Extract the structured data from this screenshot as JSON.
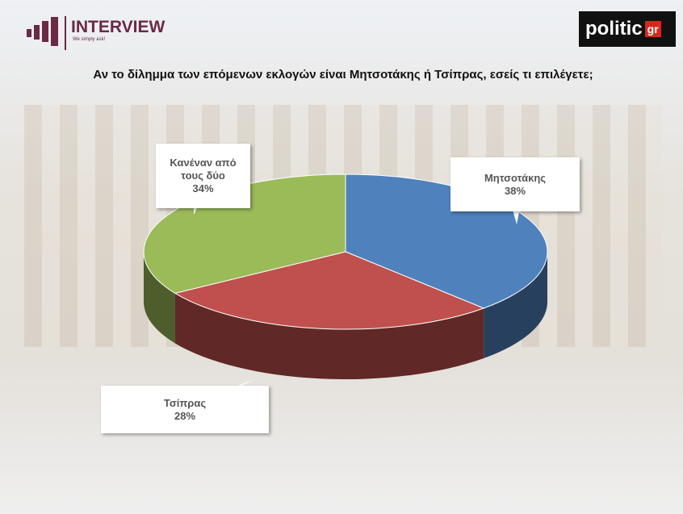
{
  "header": {
    "brand": "INTERVIEW",
    "tagline": "We simply ask!",
    "partner": "politic",
    "partner_suffix": "gr"
  },
  "chart_data": {
    "type": "pie",
    "style": "3d",
    "title": "Αν το δίλημμα των επόμενων εκλογών είναι Μητσοτάκης ή Τσίπρας, εσείς τι επιλέγετε;",
    "categories": [
      "Μητσοτάκης",
      "Τσίπρας",
      "Κανέναν από τους δύο"
    ],
    "values": [
      38,
      28,
      34
    ],
    "value_labels": [
      "38%",
      "28%",
      "34%"
    ],
    "colors": [
      "#4f81bd",
      "#c0504d",
      "#9bbb59"
    ]
  }
}
